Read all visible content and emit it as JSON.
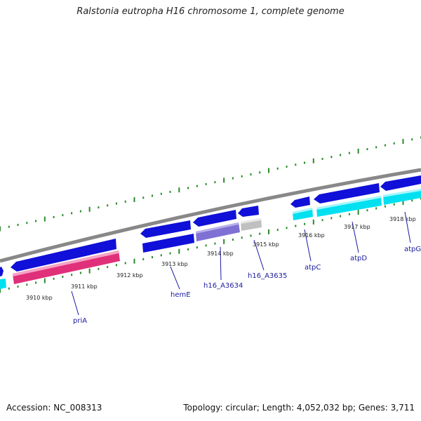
{
  "title": "Ralstonia eutropha H16 chromosome 1, complete genome",
  "footer": {
    "accession": "Accession: NC_008313",
    "summary": "Topology: circular; Length: 4,052,032 bp; Genes: 3,711"
  },
  "colors": {
    "backbone": "#888888",
    "cds": "#1010d8",
    "magenta": "#e0307a",
    "cyan": "#00e0f0",
    "purple": "#7f70d4",
    "gray": "#c0c0c0",
    "ticks": "#2a8a2a",
    "labels": "#1a1aa0"
  },
  "tick_labels": [
    "3910 kbp",
    "3911 kbp",
    "3912 kbp",
    "3913 kbp",
    "3914 kbp",
    "3915 kbp",
    "3916 kbp",
    "3917 kbp",
    "3918 kbp"
  ],
  "gene_labels": [
    "priA",
    "hemE",
    "h16_A3634",
    "h16_A3635",
    "atpC",
    "atpD",
    "atpG"
  ]
}
